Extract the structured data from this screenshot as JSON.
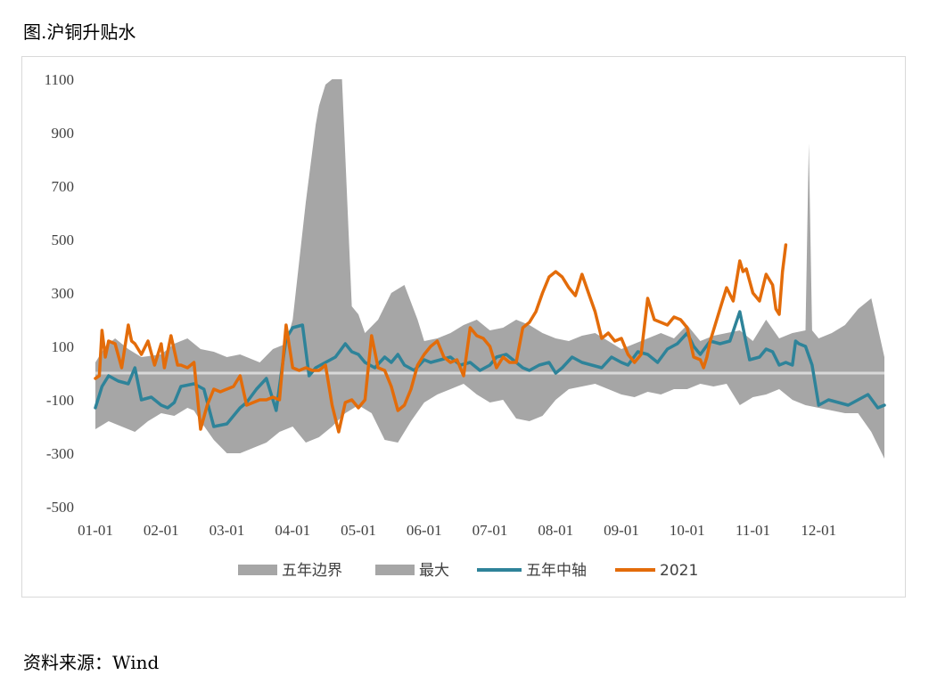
{
  "figure_title": "图.沪铜升贴水",
  "source_note": "资料来源：Wind",
  "chart_data": {
    "type": "area",
    "title": "",
    "xlabel": "",
    "ylabel": "",
    "ylim": [
      -500,
      1100
    ],
    "yticks": [
      1100,
      900,
      700,
      500,
      300,
      100,
      -100,
      -300,
      -500
    ],
    "x_categories": [
      "01-01",
      "02-01",
      "03-01",
      "04-01",
      "05-01",
      "06-01",
      "07-01",
      "08-01",
      "09-01",
      "10-01",
      "11-01",
      "12-01"
    ],
    "grid": false,
    "legend_position": "bottom",
    "legend": [
      {
        "name": "五年边界",
        "kind": "area",
        "color": "#a6a6a6"
      },
      {
        "name": "最大",
        "kind": "area",
        "color": "#a6a6a6"
      },
      {
        "name": "五年中轴",
        "kind": "line",
        "color": "#2e8399"
      },
      {
        "name": "2021",
        "kind": "line",
        "color": "#e36c0a"
      }
    ],
    "series": [
      {
        "name": "最大",
        "x_month": [
          0,
          0.15,
          0.3,
          0.5,
          0.7,
          1,
          1.2,
          1.4,
          1.6,
          1.8,
          2,
          2.2,
          2.5,
          2.7,
          2.9,
          3,
          3.2,
          3.35,
          3.4,
          3.5,
          3.6,
          3.75,
          3.9,
          4,
          4.1,
          4.3,
          4.5,
          4.7,
          4.9,
          5,
          5.2,
          5.4,
          5.6,
          5.8,
          6,
          6.2,
          6.4,
          6.6,
          6.8,
          7,
          7.2,
          7.4,
          7.6,
          7.8,
          8,
          8.2,
          8.4,
          8.6,
          8.8,
          9,
          9.2,
          9.4,
          9.6,
          9.8,
          10,
          10.2,
          10.4,
          10.6,
          10.8,
          10.85,
          10.9,
          11,
          11.2,
          11.4,
          11.6,
          11.8,
          12
        ],
        "values": [
          40,
          100,
          130,
          90,
          60,
          70,
          110,
          130,
          90,
          80,
          60,
          70,
          40,
          90,
          110,
          200,
          640,
          930,
          1000,
          1080,
          1100,
          1100,
          250,
          220,
          150,
          200,
          300,
          330,
          200,
          120,
          130,
          150,
          180,
          200,
          160,
          170,
          200,
          180,
          150,
          130,
          120,
          140,
          150,
          120,
          90,
          110,
          130,
          150,
          130,
          180,
          120,
          140,
          150,
          160,
          120,
          200,
          130,
          150,
          160,
          860,
          160,
          130,
          150,
          180,
          240,
          280,
          60
        ]
      },
      {
        "name": "五年边界",
        "x_month": [
          0,
          0.2,
          0.4,
          0.6,
          0.8,
          1,
          1.2,
          1.4,
          1.5,
          1.6,
          1.8,
          2,
          2.2,
          2.4,
          2.6,
          2.8,
          3,
          3.2,
          3.4,
          3.6,
          3.8,
          4,
          4.2,
          4.4,
          4.6,
          4.8,
          5,
          5.2,
          5.4,
          5.6,
          5.8,
          6,
          6.2,
          6.4,
          6.6,
          6.8,
          7,
          7.2,
          7.4,
          7.6,
          7.8,
          8,
          8.2,
          8.4,
          8.6,
          8.8,
          9,
          9.2,
          9.4,
          9.6,
          9.8,
          10,
          10.2,
          10.4,
          10.6,
          10.8,
          11,
          11.2,
          11.4,
          11.6,
          11.8,
          12
        ],
        "values": [
          -210,
          -180,
          -200,
          -220,
          -180,
          -150,
          -160,
          -130,
          -140,
          -180,
          -250,
          -300,
          -300,
          -280,
          -260,
          -220,
          -200,
          -260,
          -240,
          -200,
          -150,
          -120,
          -150,
          -250,
          -260,
          -180,
          -110,
          -80,
          -60,
          -40,
          -80,
          -110,
          -100,
          -170,
          -180,
          -160,
          -100,
          -60,
          -50,
          -40,
          -60,
          -80,
          -90,
          -70,
          -80,
          -60,
          -60,
          -40,
          -50,
          -40,
          -120,
          -90,
          -80,
          -60,
          -100,
          -120,
          -130,
          -140,
          -150,
          -150,
          -220,
          -320
        ]
      },
      {
        "name": "五年中轴",
        "x_month": [
          0,
          0.1,
          0.2,
          0.35,
          0.5,
          0.6,
          0.7,
          0.85,
          1,
          1.1,
          1.2,
          1.3,
          1.5,
          1.65,
          1.8,
          2,
          2.1,
          2.2,
          2.3,
          2.45,
          2.6,
          2.75,
          2.9,
          3,
          3.15,
          3.25,
          3.35,
          3.5,
          3.65,
          3.8,
          3.9,
          4,
          4.1,
          4.25,
          4.4,
          4.5,
          4.6,
          4.7,
          4.85,
          5,
          5.1,
          5.25,
          5.4,
          5.55,
          5.7,
          5.85,
          6,
          6.1,
          6.25,
          6.4,
          6.5,
          6.6,
          6.75,
          6.9,
          7,
          7.1,
          7.25,
          7.4,
          7.55,
          7.7,
          7.85,
          8,
          8.1,
          8.25,
          8.4,
          8.55,
          8.7,
          8.85,
          9,
          9.1,
          9.2,
          9.35,
          9.5,
          9.65,
          9.8,
          9.95,
          10.1,
          10.2,
          10.3,
          10.4,
          10.5,
          10.6,
          10.65,
          10.7,
          10.8,
          10.9,
          11,
          11.15,
          11.3,
          11.45,
          11.6,
          11.75,
          11.9,
          12
        ],
        "values": [
          -130,
          -50,
          -10,
          -30,
          -40,
          20,
          -100,
          -90,
          -120,
          -130,
          -110,
          -50,
          -40,
          -60,
          -200,
          -190,
          -160,
          -130,
          -110,
          -60,
          -20,
          -140,
          130,
          170,
          180,
          -10,
          20,
          40,
          60,
          110,
          80,
          70,
          40,
          20,
          60,
          40,
          70,
          30,
          10,
          50,
          40,
          50,
          60,
          30,
          40,
          10,
          30,
          60,
          70,
          40,
          20,
          10,
          30,
          40,
          0,
          20,
          60,
          40,
          30,
          20,
          60,
          40,
          30,
          80,
          70,
          40,
          90,
          110,
          150,
          100,
          70,
          120,
          110,
          120,
          230,
          50,
          60,
          90,
          80,
          30,
          40,
          30,
          120,
          110,
          100,
          30,
          -120,
          -100,
          -110,
          -120,
          -100,
          -80,
          -130,
          -120
        ]
      },
      {
        "name": "2021",
        "x_month": [
          0,
          0.06,
          0.1,
          0.15,
          0.2,
          0.3,
          0.4,
          0.5,
          0.55,
          0.6,
          0.7,
          0.8,
          0.9,
          1,
          1.05,
          1.15,
          1.25,
          1.3,
          1.4,
          1.5,
          1.6,
          1.7,
          1.8,
          1.9,
          2,
          2.1,
          2.2,
          2.3,
          2.4,
          2.5,
          2.6,
          2.7,
          2.8,
          2.9,
          3,
          3.1,
          3.2,
          3.3,
          3.4,
          3.5,
          3.6,
          3.7,
          3.8,
          3.9,
          4,
          4.1,
          4.2,
          4.3,
          4.4,
          4.5,
          4.6,
          4.7,
          4.8,
          4.9,
          5,
          5.1,
          5.2,
          5.3,
          5.4,
          5.5,
          5.6,
          5.7,
          5.8,
          5.9,
          6,
          6.1,
          6.2,
          6.3,
          6.4,
          6.5,
          6.6,
          6.7,
          6.8,
          6.9,
          7,
          7.1,
          7.2,
          7.3,
          7.4,
          7.5,
          7.6,
          7.7,
          7.8,
          7.9,
          8,
          8.1,
          8.2,
          8.3,
          8.4,
          8.5,
          8.6,
          8.7,
          8.8,
          8.9,
          9,
          9.1,
          9.2,
          9.25,
          9.3,
          9.35,
          9.4,
          9.5,
          9.6,
          9.7,
          9.8,
          9.85,
          9.9,
          10,
          10.1,
          10.2,
          10.3,
          10.35,
          10.4,
          10.45,
          10.5
        ],
        "values": [
          -20,
          -10,
          160,
          60,
          120,
          110,
          20,
          180,
          120,
          110,
          70,
          120,
          30,
          110,
          20,
          140,
          30,
          30,
          20,
          40,
          -210,
          -120,
          -60,
          -70,
          -60,
          -50,
          -10,
          -120,
          -110,
          -100,
          -100,
          -90,
          -100,
          180,
          20,
          10,
          20,
          10,
          10,
          30,
          -120,
          -220,
          -110,
          -100,
          -130,
          -100,
          140,
          20,
          10,
          -50,
          -140,
          -120,
          -60,
          30,
          70,
          100,
          120,
          60,
          40,
          50,
          -10,
          170,
          140,
          130,
          100,
          20,
          60,
          40,
          40,
          170,
          190,
          230,
          300,
          360,
          380,
          360,
          320,
          290,
          370,
          300,
          230,
          130,
          150,
          120,
          130,
          70,
          40,
          70,
          280,
          200,
          190,
          180,
          210,
          200,
          170,
          60,
          50,
          20,
          60,
          120,
          160,
          240,
          320,
          270,
          420,
          380,
          390,
          300,
          270,
          370,
          330,
          240,
          220,
          380,
          480
        ]
      }
    ]
  }
}
